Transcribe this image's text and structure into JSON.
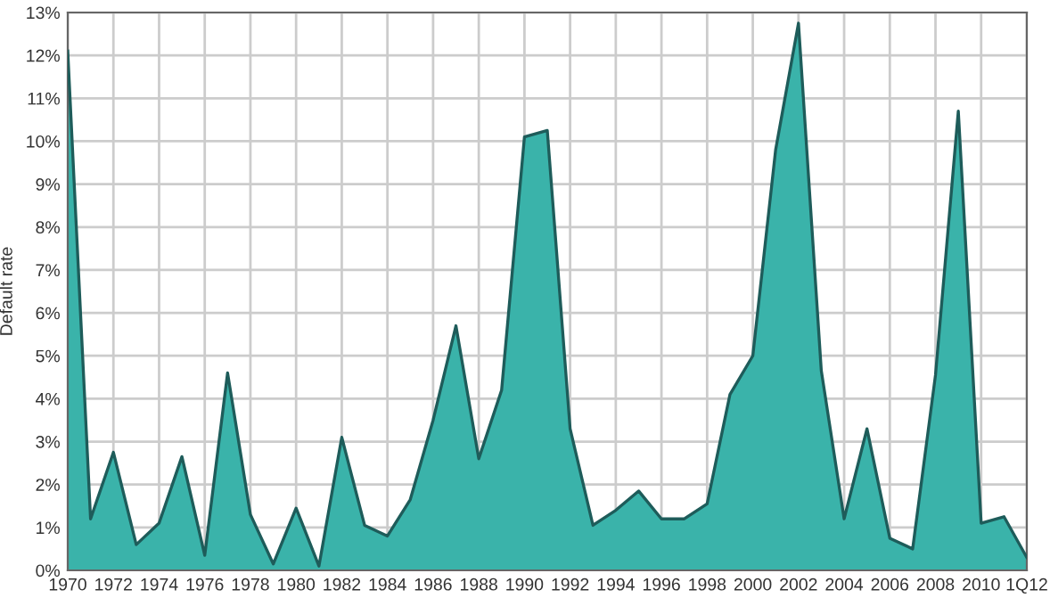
{
  "chart_data": {
    "type": "area",
    "ylabel": "Default rate",
    "categories": [
      "1970",
      null,
      "1972",
      null,
      "1974",
      null,
      "1976",
      null,
      "1978",
      null,
      "1980",
      null,
      "1982",
      null,
      "1984",
      null,
      "1986",
      null,
      "1988",
      null,
      "1990",
      null,
      "1992",
      null,
      "1994",
      null,
      "1996",
      null,
      "1998",
      null,
      "2000",
      null,
      "2002",
      null,
      "2004",
      null,
      "2006",
      null,
      "2008",
      null,
      "2010",
      null,
      "1Q12"
    ],
    "series": [
      {
        "color": "#3ab3aa",
        "values": [
          12.1,
          1.2,
          2.75,
          0.6,
          1.1,
          2.65,
          0.35,
          4.6,
          1.3,
          0.15,
          1.45,
          0.1,
          3.1,
          1.05,
          0.8,
          1.65,
          3.5,
          5.7,
          2.6,
          4.2,
          10.1,
          10.25,
          3.3,
          1.05,
          1.4,
          1.85,
          1.2,
          1.2,
          1.55,
          4.1,
          5.0,
          9.8,
          12.75,
          4.65,
          1.2,
          3.3,
          0.75,
          0.5,
          4.55,
          10.7,
          1.1,
          1.25,
          0.3
        ]
      }
    ],
    "ylim": [
      0,
      13
    ],
    "yticks": [
      {
        "value": 0,
        "label": "0%"
      },
      {
        "value": 1,
        "label": "1%"
      },
      {
        "value": 2,
        "label": "2%"
      },
      {
        "value": 3,
        "label": "3%"
      },
      {
        "value": 4,
        "label": "4%"
      },
      {
        "value": 5,
        "label": "5%"
      },
      {
        "value": 6,
        "label": "6%"
      },
      {
        "value": 7,
        "label": "7%"
      },
      {
        "value": 8,
        "label": "8%"
      },
      {
        "value": 9,
        "label": "9%"
      },
      {
        "value": 10,
        "label": "10%"
      },
      {
        "value": 11,
        "label": "11%"
      },
      {
        "value": 12,
        "label": "12%"
      },
      {
        "value": 13,
        "label": "13%"
      }
    ],
    "grid": true
  }
}
